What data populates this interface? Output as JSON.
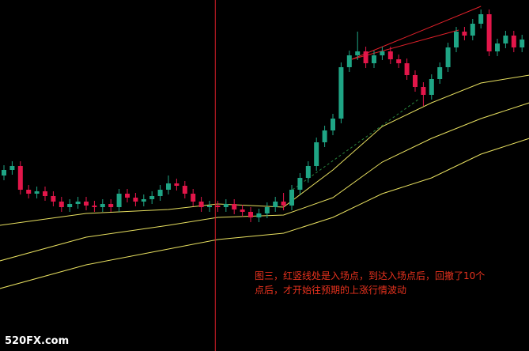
{
  "chart_data": {
    "type": "candlestick",
    "annotation": "图三，红竖线处是入场点，到达入场点后，回撤了10个点后，才开始往预期的上涨行情波动",
    "watermark": "520FX.com",
    "ylim": [
      0,
      444
    ],
    "up_color": "#1fa585",
    "down_color": "#e3164a",
    "open": [
      222,
      229,
      234,
      204,
      199,
      202,
      196,
      189,
      182,
      186,
      189,
      184,
      182,
      186,
      182,
      199,
      194,
      189,
      192,
      196,
      204,
      212,
      209,
      199,
      189,
      182,
      184,
      182,
      186,
      179,
      176,
      169,
      174,
      182,
      189,
      184,
      204,
      219,
      234,
      264,
      279,
      294,
      359,
      374,
      379,
      364,
      374,
      379,
      369,
      364,
      349,
      334,
      324,
      344,
      359,
      384,
      404,
      399,
      414,
      426,
      379,
      389,
      399,
      384
    ],
    "close": [
      229,
      234,
      204,
      199,
      202,
      196,
      189,
      182,
      186,
      189,
      184,
      182,
      186,
      182,
      199,
      194,
      189,
      192,
      196,
      204,
      212,
      209,
      199,
      189,
      182,
      184,
      182,
      186,
      179,
      176,
      169,
      174,
      182,
      189,
      184,
      204,
      219,
      234,
      264,
      279,
      294,
      359,
      374,
      379,
      364,
      374,
      379,
      369,
      364,
      349,
      334,
      324,
      344,
      359,
      384,
      404,
      399,
      414,
      426,
      379,
      389,
      399,
      384,
      394
    ],
    "high": [
      235,
      240,
      240,
      210,
      208,
      208,
      202,
      195,
      192,
      195,
      195,
      190,
      192,
      192,
      205,
      205,
      200,
      198,
      202,
      210,
      222,
      218,
      215,
      205,
      195,
      190,
      190,
      192,
      192,
      185,
      182,
      180,
      188,
      195,
      200,
      210,
      225,
      240,
      270,
      285,
      300,
      365,
      380,
      404,
      385,
      380,
      385,
      385,
      375,
      370,
      355,
      340,
      350,
      365,
      390,
      410,
      410,
      420,
      432,
      432,
      395,
      405,
      405,
      400
    ],
    "low": [
      216,
      223,
      198,
      193,
      193,
      190,
      183,
      176,
      176,
      180,
      178,
      176,
      176,
      176,
      176,
      188,
      183,
      183,
      186,
      190,
      198,
      203,
      193,
      183,
      176,
      176,
      176,
      176,
      173,
      170,
      163,
      163,
      168,
      176,
      178,
      178,
      198,
      213,
      228,
      258,
      273,
      288,
      353,
      368,
      358,
      358,
      368,
      363,
      358,
      343,
      328,
      310,
      318,
      338,
      353,
      378,
      393,
      393,
      408,
      373,
      373,
      383,
      378,
      378
    ],
    "lines": [
      {
        "color": "#e8e060",
        "x": [
          -0.5,
          10,
          20,
          26,
          34,
          40,
          46,
          52,
          58,
          63.9
        ],
        "values": [
          159,
          174,
          179,
          186,
          182,
          229,
          284,
          314,
          339,
          349
        ]
      },
      {
        "color": "#e8e060",
        "x": [
          -0.5,
          10,
          20,
          26,
          34,
          40,
          46,
          52,
          58,
          63.9
        ],
        "values": [
          114,
          144,
          159,
          169,
          172,
          194,
          239,
          269,
          294,
          314
        ]
      },
      {
        "color": "#e8e060",
        "x": [
          -0.5,
          10,
          20,
          26,
          34,
          40,
          46,
          52,
          58,
          63.9
        ],
        "values": [
          79,
          109,
          129,
          141,
          149,
          169,
          199,
          219,
          249,
          269
        ]
      },
      {
        "color": "#e0202a",
        "x": [
          42.3,
          58
        ],
        "values": [
          369,
          436
        ]
      },
      {
        "color": "#e0202a",
        "x": [
          42.3,
          55.3
        ],
        "values": [
          369,
          406
        ]
      },
      {
        "color": "#2a8a40",
        "dashed": true,
        "x": [
          35.1,
          50.5
        ],
        "values": [
          204,
          319
        ]
      }
    ],
    "vline": {
      "color": "#d8202a",
      "x": 25.7
    }
  }
}
